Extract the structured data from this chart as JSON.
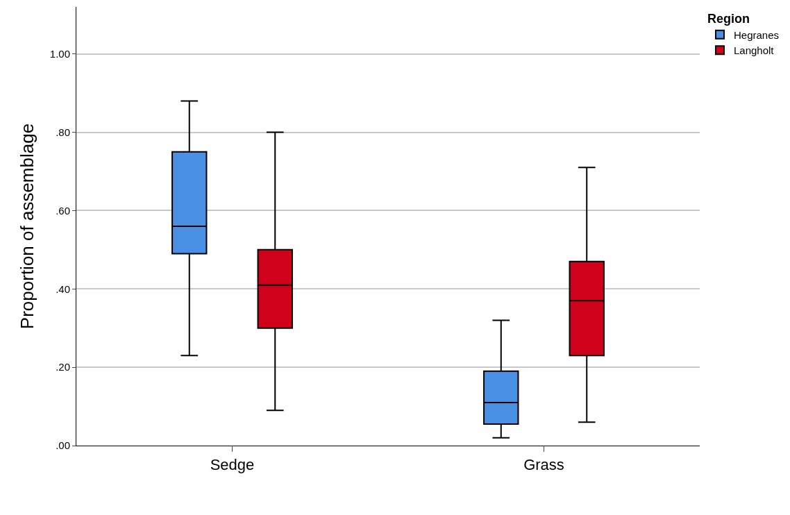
{
  "chart_data": {
    "type": "box",
    "ylabel": "Proportion of assemblage",
    "legend_title": "Region",
    "categories": [
      "Sedge",
      "Grass"
    ],
    "series": [
      {
        "name": "Hegranes",
        "color": "#4a90e2",
        "boxes": [
          {
            "low": 0.23,
            "q1": 0.49,
            "median": 0.56,
            "q3": 0.75,
            "high": 0.88
          },
          {
            "low": 0.02,
            "q1": 0.055,
            "median": 0.11,
            "q3": 0.19,
            "high": 0.32
          }
        ]
      },
      {
        "name": "Langholt",
        "color": "#d0021b",
        "boxes": [
          {
            "low": 0.09,
            "q1": 0.3,
            "median": 0.41,
            "q3": 0.5,
            "high": 0.8
          },
          {
            "low": 0.06,
            "q1": 0.23,
            "median": 0.37,
            "q3": 0.47,
            "high": 0.71
          }
        ]
      }
    ],
    "ylim": [
      0,
      1.12
    ],
    "yticks": [
      {
        "value": 0,
        "label": ".00"
      },
      {
        "value": 0.2,
        "label": ".20"
      },
      {
        "value": 0.4,
        "label": ".40"
      },
      {
        "value": 0.6,
        "label": ".60"
      },
      {
        "value": 0.8,
        "label": ".80"
      },
      {
        "value": 1,
        "label": "1.00"
      }
    ],
    "grid": "y",
    "legend": "top right"
  }
}
